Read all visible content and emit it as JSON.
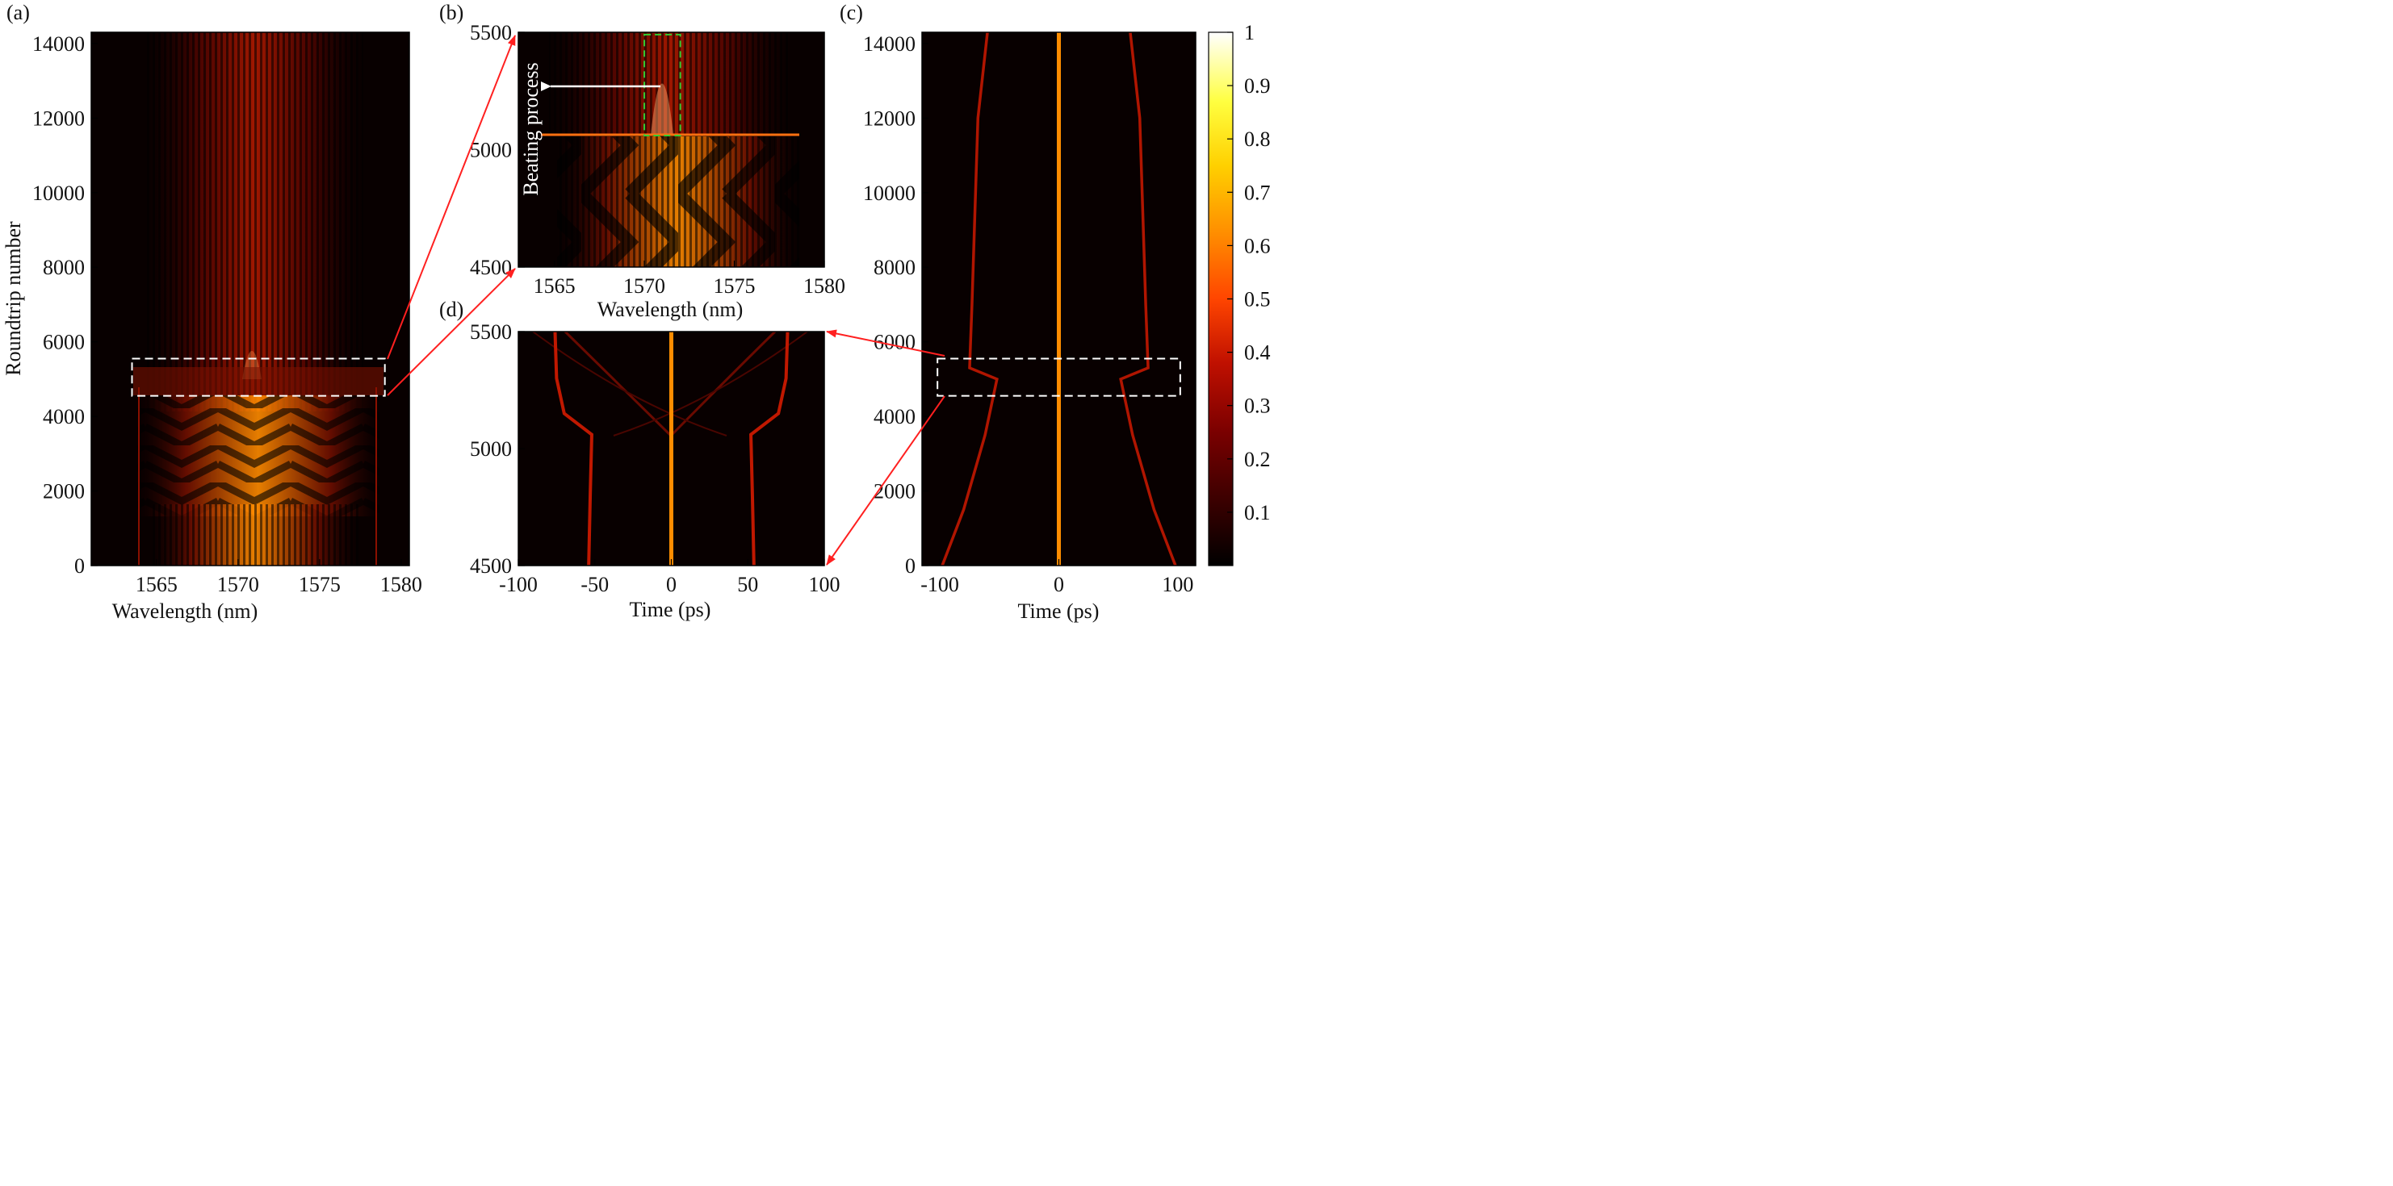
{
  "colors": {
    "colormap": [
      "#000000",
      "#3a0000",
      "#7a0000",
      "#c01000",
      "#ff4500",
      "#ff8c00",
      "#ffd000",
      "#ffff40",
      "#ffffff"
    ],
    "annotation_arrow": "#ff2020",
    "highlight_box": "#ffffff",
    "green_box": "#33cc33",
    "white_arrow": "#ffffff"
  },
  "chart_data": [
    {
      "panel": "(a)",
      "type": "heatmap",
      "title": "",
      "xlabel": "Wavelength (nm)",
      "ylabel": "Roundtrip number",
      "xlim": [
        1561,
        1580.5
      ],
      "ylim": [
        0,
        14300
      ],
      "xticks": [
        1565,
        1570,
        1575,
        1580
      ],
      "xtick_labels": [
        "1565",
        "1570",
        "1575",
        "1580"
      ],
      "yticks": [
        0,
        2000,
        4000,
        6000,
        8000,
        10000,
        12000,
        14000
      ],
      "ytick_labels": [
        "0",
        "2000",
        "4000",
        "6000",
        "8000",
        "10000",
        "12000",
        "14000"
      ],
      "highlight_region": {
        "x": [
          1563.5,
          1579
        ],
        "y": [
          4550,
          5550
        ]
      },
      "description": "Spectral evolution: striped interference below ~5050 roundtrips, broad single-peaked spectrum centered near 1571 nm above."
    },
    {
      "panel": "(b)",
      "type": "heatmap",
      "xlabel": "Wavelength (nm)",
      "ylabel": "",
      "xlim": [
        1563,
        1580
      ],
      "ylim": [
        4500,
        5500
      ],
      "xticks": [
        1565,
        1570,
        1575,
        1580
      ],
      "xtick_labels": [
        "1565",
        "1570",
        "1575",
        "1580"
      ],
      "yticks": [
        4500,
        5000,
        5500
      ],
      "ytick_labels": [
        "4500",
        "5000",
        "5500"
      ],
      "annotation": "Beating process",
      "green_box": {
        "x": [
          1570,
          1572
        ],
        "y": [
          5060,
          5490
        ]
      },
      "transition_roundtrip": 5060
    },
    {
      "panel": "(c)",
      "type": "heatmap",
      "xlabel": "Time (ps)",
      "ylabel": "",
      "xlim": [
        -115,
        115
      ],
      "ylim": [
        0,
        14300
      ],
      "xticks": [
        -100,
        0,
        100
      ],
      "xtick_labels": [
        "-100",
        "0",
        "100"
      ],
      "yticks": [
        0,
        2000,
        4000,
        6000,
        8000,
        10000,
        12000,
        14000
      ],
      "ytick_labels": [
        "0",
        "2000",
        "4000",
        "6000",
        "8000",
        "10000",
        "12000",
        "14000"
      ],
      "highlight_region": {
        "x": [
          -102,
          102
        ],
        "y": [
          4550,
          5550
        ]
      },
      "pulse_tracks": [
        {
          "name": "center",
          "time": [
            0,
            0
          ],
          "roundtrip": [
            0,
            14300
          ]
        },
        {
          "name": "outer-left",
          "time": [
            -98,
            -80,
            -62,
            -52,
            -75,
            -73,
            -68,
            -60
          ],
          "roundtrip": [
            0,
            1500,
            3500,
            5000,
            5300,
            7000,
            12000,
            14300
          ]
        },
        {
          "name": "outer-right",
          "time": [
            98,
            80,
            62,
            52,
            75,
            73,
            68,
            60
          ],
          "roundtrip": [
            0,
            1500,
            3500,
            5000,
            5300,
            7000,
            12000,
            14300
          ]
        }
      ]
    },
    {
      "panel": "(d)",
      "type": "heatmap",
      "xlabel": "Time (ps)",
      "ylabel": "",
      "xlim": [
        -100,
        100
      ],
      "ylim": [
        4500,
        5500
      ],
      "xticks": [
        -100,
        -50,
        0,
        50,
        100
      ],
      "xtick_labels": [
        "-100",
        "-50",
        "0",
        "50",
        "100"
      ],
      "yticks": [
        4500,
        5000,
        5500
      ],
      "ytick_labels": [
        "4500",
        "5000",
        "5500"
      ],
      "pulse_tracks": [
        {
          "name": "center",
          "time": [
            0,
            0
          ],
          "roundtrip": [
            4500,
            5500
          ]
        },
        {
          "name": "left",
          "time": [
            -54,
            -53,
            -52,
            -70,
            -75,
            -76
          ],
          "roundtrip": [
            4500,
            4800,
            5060,
            5150,
            5300,
            5500
          ]
        },
        {
          "name": "right",
          "time": [
            54,
            53,
            52,
            70,
            75,
            76
          ],
          "roundtrip": [
            4500,
            4800,
            5060,
            5150,
            5300,
            5500
          ]
        }
      ]
    }
  ],
  "colorbar": {
    "range": [
      0,
      1
    ],
    "ticks": [
      0.1,
      0.2,
      0.3,
      0.4,
      0.5,
      0.6,
      0.7,
      0.8,
      0.9,
      1
    ],
    "tick_labels": [
      "0.1",
      "0.2",
      "0.3",
      "0.4",
      "0.5",
      "0.6",
      "0.7",
      "0.8",
      "0.9",
      "1"
    ]
  },
  "labels": {
    "panel_a": "(a)",
    "panel_b": "(b)",
    "panel_c": "(c)",
    "panel_d": "(d)",
    "beating": "Beating process"
  }
}
